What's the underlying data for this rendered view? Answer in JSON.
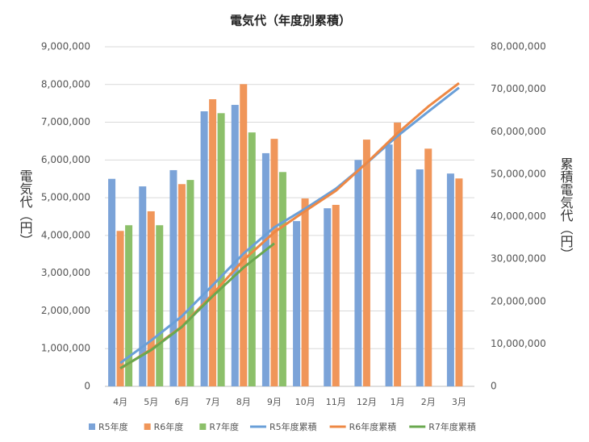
{
  "chart_data": {
    "type": "bar_line",
    "title": "電気代（年度別累積）",
    "y_label": "電気代（円）",
    "y2_label": "累積電気代（円）",
    "categories": [
      "4月",
      "5月",
      "6月",
      "7月",
      "8月",
      "9月",
      "10月",
      "11月",
      "12月",
      "1月",
      "2月",
      "3月"
    ],
    "series": [
      {
        "name": "R5年度",
        "kind": "bar",
        "color": "#7ba3d8",
        "values": [
          5500000,
          5300000,
          5730000,
          7290000,
          7460000,
          6180000,
          4380000,
          4720000,
          6000000,
          6410000,
          5750000,
          5640000
        ]
      },
      {
        "name": "R6年度",
        "kind": "bar",
        "color": "#f0965a",
        "values": [
          4120000,
          4640000,
          5360000,
          7610000,
          8010000,
          6560000,
          4980000,
          4810000,
          6540000,
          6990000,
          6300000,
          5510000
        ]
      },
      {
        "name": "R7年度",
        "kind": "bar",
        "color": "#8cc06a",
        "values": [
          4270000,
          4270000,
          5470000,
          7240000,
          6730000,
          5680000,
          null,
          null,
          null,
          null,
          null,
          null
        ]
      },
      {
        "name": "R5年度累積",
        "kind": "line",
        "axis": "y2",
        "color": "#6a9fd8",
        "values": [
          5500000,
          10800000,
          16530000,
          23820000,
          31280000,
          37460000,
          41840000,
          46560000,
          52560000,
          58970000,
          64720000,
          70360000
        ]
      },
      {
        "name": "R6年度累積",
        "kind": "line",
        "axis": "y2",
        "color": "#ee8844",
        "values": [
          4120000,
          8760000,
          14120000,
          21730000,
          29740000,
          36300000,
          41280000,
          46090000,
          52630000,
          59620000,
          65920000,
          71430000
        ]
      },
      {
        "name": "R7年度累積",
        "kind": "line",
        "axis": "y2",
        "color": "#6aa84f",
        "values": [
          4270000,
          8540000,
          14010000,
          21250000,
          27980000,
          33660000,
          null,
          null,
          null,
          null,
          null,
          null
        ]
      }
    ],
    "ylim": [
      0,
      9000000
    ],
    "yticks": [
      0,
      {
        "value": 1000000,
        "label": "1,000,000"
      },
      {
        "value": 2000000,
        "label": "2,000,000"
      },
      {
        "value": 3000000,
        "label": "3,000,000"
      },
      {
        "value": 4000000,
        "label": "4,000,000"
      },
      {
        "value": 5000000,
        "label": "5,000,000"
      },
      {
        "value": 6000000,
        "label": "6,000,000"
      },
      {
        "value": 7000000,
        "label": "7,000,000"
      },
      {
        "value": 8000000,
        "label": "8,000,000"
      },
      {
        "value": 9000000,
        "label": "9,000,000"
      }
    ],
    "y2lim": [
      0,
      80000000
    ],
    "y2ticks": [
      0,
      {
        "value": 10000000,
        "label": "10,000,000"
      },
      {
        "value": 20000000,
        "label": "20,000,000"
      },
      {
        "value": 30000000,
        "label": "30,000,000"
      },
      {
        "value": 40000000,
        "label": "40,000,000"
      },
      {
        "value": 50000000,
        "label": "50,000,000"
      },
      {
        "value": 60000000,
        "label": "60,000,000"
      },
      {
        "value": 70000000,
        "label": "70,000,000"
      },
      {
        "value": 80000000,
        "label": "80,000,000"
      }
    ],
    "grid": true
  }
}
